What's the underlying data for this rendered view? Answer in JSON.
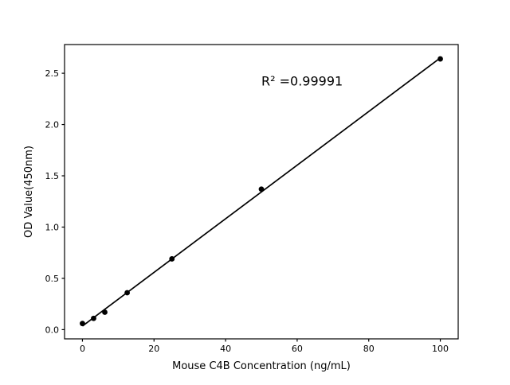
{
  "chart_data": {
    "type": "scatter",
    "title": "",
    "xlabel": "Mouse C4B Concentration (ng/mL)",
    "ylabel": "OD Value(450nm)",
    "x": [
      0,
      3.125,
      6.25,
      12.5,
      25,
      50,
      100
    ],
    "y": [
      0.06,
      0.11,
      0.17,
      0.36,
      0.69,
      1.37,
      2.64
    ],
    "fit_line": {
      "x": [
        0,
        100
      ],
      "y": [
        0.035,
        2.65
      ]
    },
    "annotation": {
      "text": "R² =0.99991",
      "x": 50,
      "y": 2.38
    },
    "xticks": [
      0,
      20,
      40,
      60,
      80,
      100
    ],
    "yticks": [
      0.0,
      0.5,
      1.0,
      1.5,
      2.0,
      2.5
    ],
    "xlim": [
      -5,
      105
    ],
    "ylim": [
      -0.09,
      2.78
    ],
    "grid": false,
    "legend": null,
    "colors": {
      "marker": "#000000",
      "line": "#000000",
      "text": "#000000",
      "spine": "#000000"
    }
  }
}
